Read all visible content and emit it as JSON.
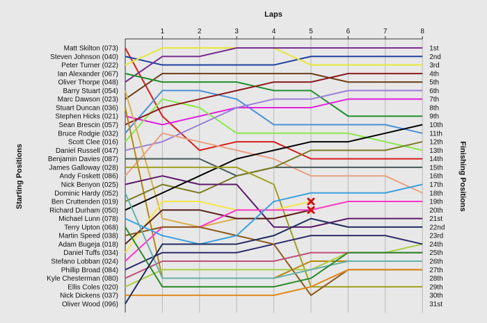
{
  "chart_data": {
    "type": "line",
    "title": "",
    "xlabel": "Laps",
    "ylabel_left": "Starting Positions",
    "ylabel_right": "Finishing Positions",
    "laps": [
      0,
      1,
      2,
      3,
      4,
      5,
      6,
      7,
      8
    ],
    "x_ticks": [
      "1",
      "2",
      "3",
      "4",
      "5",
      "6",
      "7",
      "8"
    ],
    "ylim": [
      1,
      31
    ],
    "grid": true,
    "finishing_labels": [
      "1st",
      "2nd",
      "3rd",
      "4th",
      "5th",
      "6th",
      "7th",
      "8th",
      "9th",
      "10th",
      "11th",
      "12th",
      "13th",
      "14th",
      "15th",
      "16th",
      "17th",
      "18th",
      "19th",
      "20th",
      "21st",
      "22nd",
      "23rd",
      "24th",
      "25th",
      "26th",
      "27th",
      "28th",
      "29th",
      "30th",
      "31st"
    ],
    "series": [
      {
        "name": "Matt Skilton (073)",
        "color": "#d51c1c",
        "positions": [
          1,
          9,
          13,
          12,
          12,
          14,
          14,
          14,
          14
        ]
      },
      {
        "name": "Steven Johnson (040)",
        "color": "#1f3f9f",
        "positions": [
          2,
          3,
          3,
          3,
          3,
          2,
          2,
          2,
          2
        ]
      },
      {
        "name": "Peter Turner (022)",
        "color": "#e6e637",
        "positions": [
          3,
          1,
          1,
          1,
          1,
          3,
          3,
          3,
          3
        ]
      },
      {
        "name": "Oliver Thorpe (048)",
        "color": "#772e8f",
        "positions": [
          5,
          2,
          2,
          1,
          1,
          1,
          1,
          1,
          1
        ]
      },
      {
        "name": "Marc Dawson (023)",
        "color": "#6b3d1a",
        "positions": [
          7,
          4,
          4,
          4,
          4,
          4,
          5,
          5,
          5
        ]
      },
      {
        "name": "Bruce Rodgie (032)",
        "color": "#4a8fd8",
        "positions": [
          11,
          6,
          6,
          7,
          10,
          10,
          10,
          10,
          11
        ]
      },
      {
        "name": "Ian Alexander (067)",
        "color": "#1e8f2c",
        "positions": [
          4,
          5,
          5,
          5,
          6,
          6,
          9,
          9,
          9
        ]
      },
      {
        "name": "Stephen Hicks (021)",
        "color": "#e21ee0",
        "positions": [
          9,
          10,
          9,
          8,
          8,
          8,
          7,
          7,
          7
        ]
      },
      {
        "name": "Scott Clee (016)",
        "color": "#8ae84a",
        "positions": [
          12,
          7,
          8,
          11,
          11,
          11,
          11,
          12,
          13
        ]
      },
      {
        "name": "Sean Brescin (057)",
        "color": "#8b1a1a",
        "positions": [
          10,
          8,
          7,
          6,
          5,
          5,
          4,
          4,
          4
        ]
      },
      {
        "name": "Daniel Russell (047)",
        "color": "#9a7ed8",
        "positions": [
          13,
          12,
          10,
          8,
          7,
          7,
          6,
          6,
          6
        ]
      },
      {
        "name": "Andy Foskett (086)",
        "color": "#e8a080",
        "positions": [
          16,
          11,
          12,
          13,
          14,
          16,
          16,
          16,
          18
        ]
      },
      {
        "name": "Barry Stuart (054)",
        "color": "#d9b04a",
        "positions": [
          6,
          21,
          22,
          21,
          21,
          20,
          19,
          19,
          19
        ]
      },
      {
        "name": "Stuart Duncan (036)",
        "color": "#b8860b",
        "positions": [
          8,
          28,
          28,
          28,
          28,
          26,
          26,
          26,
          26
        ]
      },
      {
        "name": "Benjamin Davies (087)",
        "color": "#465858",
        "positions": [
          14,
          14,
          14,
          16,
          15,
          15,
          15,
          15,
          15
        ]
      },
      {
        "name": "Ben Cruttenden (019)",
        "color": "#7a7a20",
        "positions": [
          19,
          17,
          18,
          16,
          15,
          13,
          13,
          13,
          12
        ]
      },
      {
        "name": "Nick Benyon (025)",
        "color": "#5a1a6a",
        "positions": [
          17,
          16,
          17,
          17,
          22,
          22,
          21,
          21,
          21
        ]
      },
      {
        "name": "Richard Durham (050)",
        "color": "#000000",
        "positions": [
          20,
          18,
          16,
          14,
          13,
          12,
          12,
          11,
          10
        ]
      },
      {
        "name": "James Galloway (028)",
        "color": "#a0a020",
        "positions": [
          15,
          15,
          15,
          15,
          17,
          29,
          29,
          29,
          29
        ]
      },
      {
        "name": "Daniel Tuffs (034)",
        "color": "#f5e642",
        "positions": [
          25,
          19,
          19,
          20,
          20,
          19,
          null,
          null,
          null
        ]
      },
      {
        "name": "Adam Bugeja (018)",
        "color": "#5a1a1a",
        "positions": [
          24,
          20,
          20,
          21,
          21,
          20,
          null,
          null,
          null
        ]
      },
      {
        "name": "Ellis Coles (020)",
        "color": "#aacc44",
        "positions": [
          29,
          27,
          27,
          27,
          27,
          27,
          25,
          25,
          24
        ]
      },
      {
        "name": "Stefano Lobban (024)",
        "color": "#ff33cc",
        "positions": [
          26,
          22,
          22,
          20,
          20,
          20,
          19,
          19,
          19
        ]
      },
      {
        "name": "Phillip Broad (084)",
        "color": "#2c2c6c",
        "positions": [
          27,
          25,
          25,
          25,
          24,
          23,
          23,
          23,
          24
        ]
      },
      {
        "name": "Martin Speed (038)",
        "color": "#8c5a1a",
        "positions": [
          23,
          22,
          22,
          23,
          24,
          30,
          27,
          27,
          27
        ]
      },
      {
        "name": "Kyle Chesterman (080)",
        "color": "#c0507a",
        "positions": [
          28,
          26,
          26,
          26,
          26,
          25,
          25,
          25,
          25
        ]
      },
      {
        "name": "Michael Lunn (078)",
        "color": "#3aa0e0",
        "positions": [
          21,
          23,
          24,
          23,
          19,
          18,
          18,
          18,
          17
        ]
      },
      {
        "name": "Dominic Hardy (052)",
        "color": "#66b0a8",
        "positions": [
          18,
          28,
          28,
          28,
          28,
          27,
          26,
          26,
          26
        ]
      },
      {
        "name": "Terry Upton (068)",
        "color": "#2a8a2a",
        "positions": [
          22,
          29,
          29,
          29,
          29,
          28,
          25,
          25,
          25
        ]
      },
      {
        "name": "Nick Dickens (037)",
        "color": "#e08a1a",
        "positions": [
          30,
          30,
          30,
          30,
          30,
          29,
          27,
          27,
          27
        ]
      },
      {
        "name": "Oliver Wood (096)",
        "color": "#1e2c5c",
        "positions": [
          31,
          24,
          24,
          24,
          23,
          21,
          22,
          22,
          22
        ]
      }
    ],
    "retired_markers": [
      {
        "lap": 5,
        "position": 19
      },
      {
        "lap": 5,
        "position": 20
      }
    ]
  }
}
